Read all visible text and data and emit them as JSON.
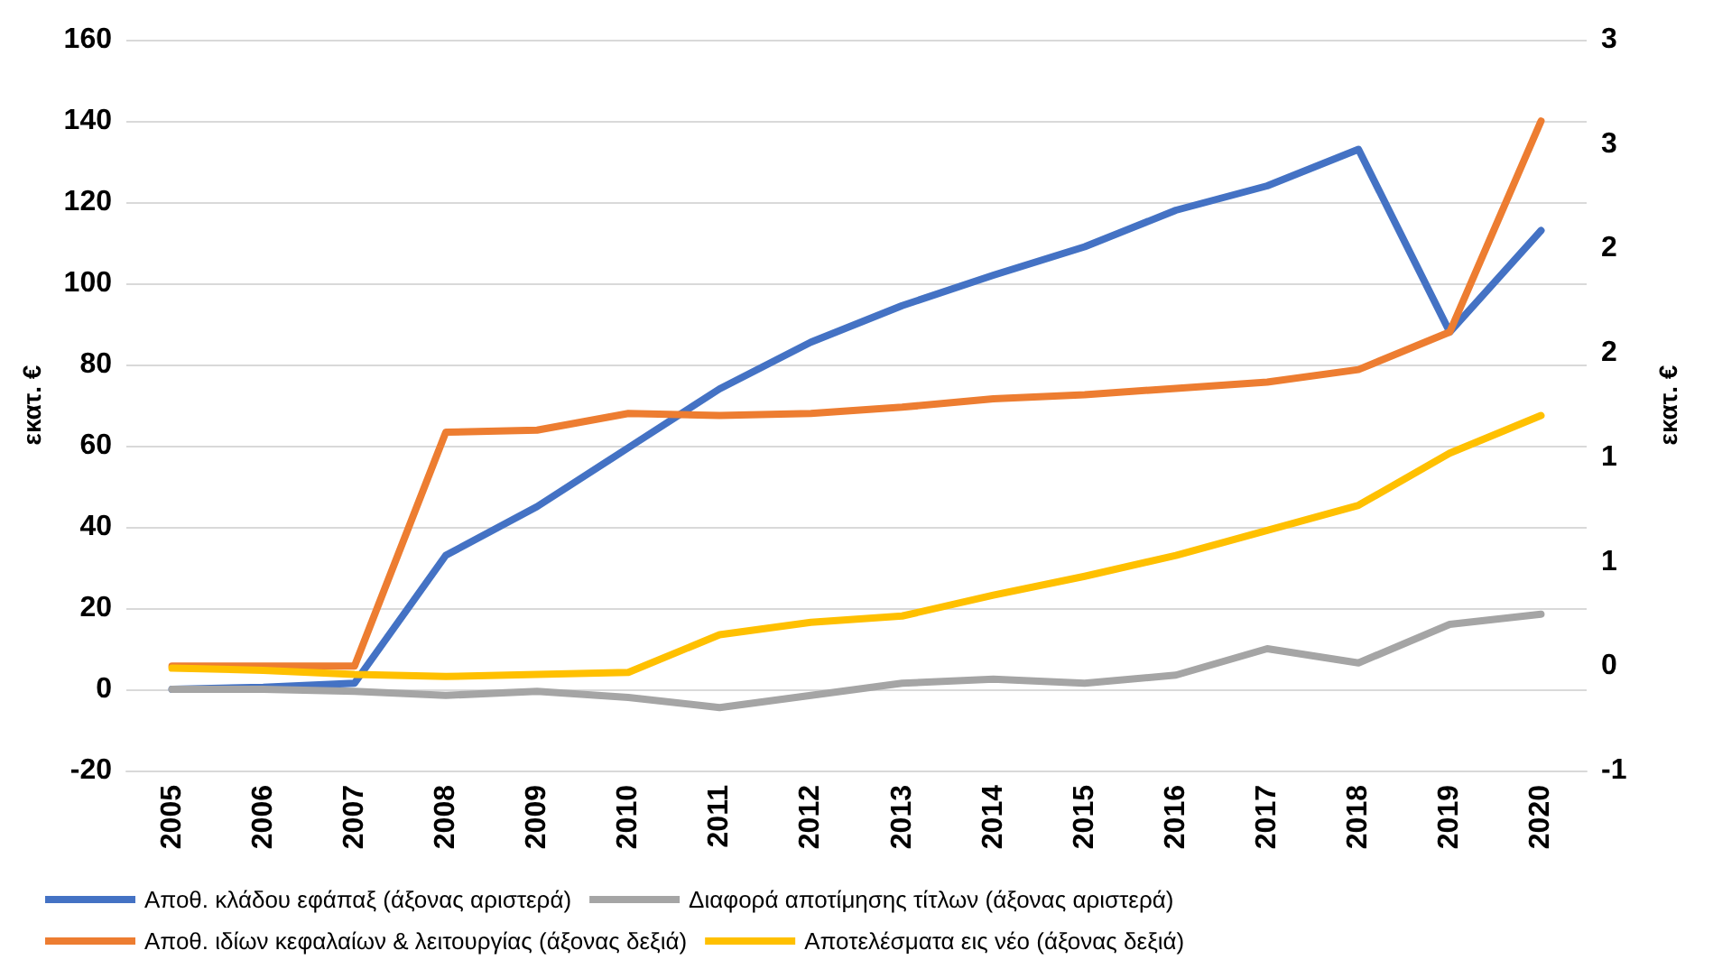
{
  "chart_data": {
    "type": "line",
    "ylabel": "εκατ. €",
    "y2label": "εκατ. €",
    "categories": [
      "2005",
      "2006",
      "2007",
      "2008",
      "2009",
      "2010",
      "2011",
      "2012",
      "2013",
      "2014",
      "2015",
      "2016",
      "2017",
      "2018",
      "2019",
      "2020"
    ],
    "series": [
      {
        "name": "Αποθ. κλάδου εφάπαξ (άξονας αριστερά)",
        "color": "#4472c4",
        "values": [
          0,
          0.5,
          1.5,
          33,
          45,
          59.5,
          74,
          85.5,
          94.5,
          102,
          109,
          118,
          124,
          133,
          88,
          113
        ]
      },
      {
        "name": "Διαφορά αποτίμησης τίτλων (άξονας αριστερά)",
        "color": "#a5a5a5",
        "values": [
          0,
          0,
          -0.5,
          -1.5,
          -0.5,
          -2,
          -4.5,
          -1.5,
          1.5,
          2.5,
          1.5,
          3.5,
          10,
          6.5,
          16,
          18.5
        ]
      },
      {
        "name": "Αποθ. ιδίων κεφαλαίων & λειτουργίας (άξονας δεξιά)",
        "color": "#ed7d31",
        "axis": "y2",
        "values": [
          0,
          0,
          0,
          1.12,
          1.13,
          1.21,
          1.2,
          1.21,
          1.24,
          1.28,
          1.3,
          1.33,
          1.36,
          1.42,
          1.6,
          2.61
        ]
      },
      {
        "name": "Αποτελέσματα εις νέο (άξονας δεξιά)",
        "color": "#ffc000",
        "axis": "y2",
        "values": [
          -0.01,
          -0.02,
          -0.04,
          -0.05,
          -0.04,
          -0.03,
          0.15,
          0.21,
          0.24,
          0.34,
          0.43,
          0.53,
          0.65,
          0.77,
          1.02,
          1.2
        ]
      }
    ],
    "ylim": [
      -20,
      160
    ],
    "yticks": [
      -20,
      0,
      20,
      40,
      60,
      80,
      100,
      120,
      140,
      160
    ],
    "y2lim": [
      -0.5,
      3
    ],
    "y2ticks": [
      {
        "value": -0.5,
        "label": "-1"
      },
      {
        "value": 0,
        "label": "0"
      },
      {
        "value": 0.5,
        "label": "1"
      },
      {
        "value": 1,
        "label": "1"
      },
      {
        "value": 1.5,
        "label": "2"
      },
      {
        "value": 2,
        "label": "2"
      },
      {
        "value": 2.5,
        "label": "3"
      },
      {
        "value": 3,
        "label": "3"
      }
    ],
    "grid": "y",
    "legend": "bottom",
    "marker": "none",
    "line_style": "solid"
  }
}
